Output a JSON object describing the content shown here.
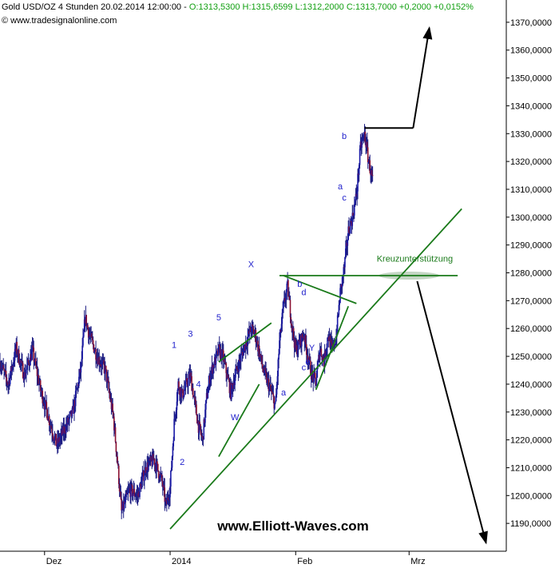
{
  "header": {
    "symbol": "Gold USD/OZ 4 Stunden",
    "datetime": "20.02.2014 12:00:00",
    "open": "O:1313,5300",
    "high": "H:1315,6599",
    "low": "L:1312,2000",
    "close": "C:1313,7000",
    "change": "+0,2000",
    "change_pct": "+0,0152%",
    "source": "© www.tradesignalonline.com"
  },
  "watermark": "www.Elliott-Waves.com",
  "colors": {
    "up_candle": "#1a1aa8",
    "down_candle": "#8a1030",
    "trend_lines": "#1a7a1a",
    "wave_labels": "#2222cc",
    "arrows": "#000000",
    "header_values": "#12a012"
  },
  "chart_data": {
    "type": "candlestick",
    "title": "Gold USD/OZ 4 Stunden",
    "y_axis": {
      "position": "right",
      "range": [
        1180,
        1378
      ],
      "ticks": [
        "1190,0000",
        "1200,0000",
        "1210,0000",
        "1220,0000",
        "1230,0000",
        "1240,0000",
        "1250,0000",
        "1260,0000",
        "1270,0000",
        "1280,0000",
        "1290,0000",
        "1300,0000",
        "1310,0000",
        "1320,0000",
        "1330,0000",
        "1340,0000",
        "1350,0000",
        "1360,0000",
        "1370,0000"
      ]
    },
    "x_axis": {
      "tick_labels": [
        "Dez",
        "2014",
        "Feb",
        "Mrz"
      ],
      "range": [
        "2013-11-20",
        "2014-03-25"
      ]
    },
    "grid": false,
    "price_path": [
      [
        "2013-11-20",
        1248
      ],
      [
        "2013-11-22",
        1240
      ],
      [
        "2013-11-24",
        1253
      ],
      [
        "2013-11-26",
        1243
      ],
      [
        "2013-11-28",
        1252
      ],
      [
        "2013-11-30",
        1238
      ],
      [
        "2013-12-02",
        1228
      ],
      [
        "2013-12-04",
        1218
      ],
      [
        "2013-12-06",
        1224
      ],
      [
        "2013-12-08",
        1230
      ],
      [
        "2013-12-10",
        1246
      ],
      [
        "2013-12-11",
        1264
      ],
      [
        "2013-12-12",
        1258
      ],
      [
        "2013-12-14",
        1250
      ],
      [
        "2013-12-16",
        1245
      ],
      [
        "2013-12-18",
        1228
      ],
      [
        "2013-12-19",
        1212
      ],
      [
        "2013-12-20",
        1194
      ],
      [
        "2013-12-22",
        1202
      ],
      [
        "2013-12-24",
        1200
      ],
      [
        "2013-12-26",
        1210
      ],
      [
        "2013-12-28",
        1213
      ],
      [
        "2013-12-30",
        1205
      ],
      [
        "2013-12-31",
        1196
      ],
      [
        "2014-01-01",
        1203
      ],
      [
        "2014-01-02",
        1226
      ],
      [
        "2014-01-03",
        1240
      ],
      [
        "2014-01-04",
        1236
      ],
      [
        "2014-01-05",
        1240
      ],
      [
        "2014-01-06",
        1243
      ],
      [
        "2014-01-08",
        1225
      ],
      [
        "2014-01-09",
        1220
      ],
      [
        "2014-01-10",
        1235
      ],
      [
        "2014-01-11",
        1244
      ],
      [
        "2014-01-13",
        1252
      ],
      [
        "2014-01-14",
        1250
      ],
      [
        "2014-01-16",
        1237
      ],
      [
        "2014-01-17",
        1243
      ],
      [
        "2014-01-19",
        1252
      ],
      [
        "2014-01-21",
        1260
      ],
      [
        "2014-01-22",
        1258
      ],
      [
        "2014-01-24",
        1245
      ],
      [
        "2014-01-26",
        1237
      ],
      [
        "2014-01-27",
        1232
      ],
      [
        "2014-01-28",
        1255
      ],
      [
        "2014-01-29",
        1268
      ],
      [
        "2014-01-30",
        1275
      ],
      [
        "2014-01-31",
        1262
      ],
      [
        "2014-02-01",
        1252
      ],
      [
        "2014-02-03",
        1258
      ],
      [
        "2014-02-04",
        1250
      ],
      [
        "2014-02-05",
        1243
      ],
      [
        "2014-02-06",
        1241
      ],
      [
        "2014-02-07",
        1253
      ],
      [
        "2014-02-08",
        1248
      ],
      [
        "2014-02-09",
        1258
      ],
      [
        "2014-02-10",
        1252
      ],
      [
        "2014-02-11",
        1257
      ],
      [
        "2014-02-12",
        1273
      ],
      [
        "2014-02-13",
        1282
      ],
      [
        "2014-02-14",
        1295
      ],
      [
        "2014-02-15",
        1300
      ],
      [
        "2014-02-16",
        1308
      ],
      [
        "2014-02-17",
        1325
      ],
      [
        "2014-02-18",
        1330
      ],
      [
        "2014-02-19",
        1320
      ],
      [
        "2014-02-20",
        1313
      ]
    ],
    "trend_lines": [
      {
        "from": [
          "2014-01-01",
          1188
        ],
        "to": [
          "2014-03-14",
          1303
        ]
      },
      {
        "from": [
          "2014-01-13",
          1248
        ],
        "to": [
          "2014-01-26",
          1262
        ]
      },
      {
        "from": [
          "2014-01-13",
          1214
        ],
        "to": [
          "2014-01-23",
          1240
        ]
      },
      {
        "from": [
          "2014-01-28",
          1279
        ],
        "to": [
          "2014-03-13",
          1279
        ]
      },
      {
        "from": [
          "2014-01-29",
          1279
        ],
        "to": [
          "2014-02-16",
          1269
        ]
      },
      {
        "from": [
          "2014-02-06",
          1238
        ],
        "to": [
          "2014-02-14",
          1268
        ]
      }
    ],
    "arrows": [
      {
        "from": [
          "2014-02-18",
          1332
        ],
        "to": [
          "2014-03-02",
          1332
        ]
      },
      {
        "from": [
          "2014-03-02",
          1332
        ],
        "to": [
          "2014-03-06",
          1368
        ]
      },
      {
        "from": [
          "2014-03-03",
          1277
        ],
        "to": [
          "2014-03-20",
          1183
        ]
      }
    ],
    "wave_labels": [
      {
        "text": "1",
        "x": "2014-01-02",
        "y": 1253
      },
      {
        "text": "2",
        "x": "2014-01-04",
        "y": 1211
      },
      {
        "text": "3",
        "x": "2014-01-06",
        "y": 1257
      },
      {
        "text": "4",
        "x": "2014-01-08",
        "y": 1239
      },
      {
        "text": "5",
        "x": "2014-01-13",
        "y": 1263
      },
      {
        "text": "W",
        "x": "2014-01-17",
        "y": 1227
      },
      {
        "text": "X",
        "x": "2014-01-21",
        "y": 1282
      },
      {
        "text": "a",
        "x": "2014-01-29",
        "y": 1236
      },
      {
        "text": "b",
        "x": "2014-02-02",
        "y": 1275
      },
      {
        "text": "c",
        "x": "2014-02-03",
        "y": 1245
      },
      {
        "text": "d",
        "x": "2014-02-03",
        "y": 1272
      },
      {
        "text": "e",
        "x": "2014-02-04",
        "y": 1247
      },
      {
        "text": "Y",
        "x": "2014-02-05",
        "y": 1252
      },
      {
        "text": "b",
        "x": "2014-02-13",
        "y": 1328
      },
      {
        "text": "a",
        "x": "2014-02-12",
        "y": 1310
      },
      {
        "text": "c",
        "x": "2014-02-13",
        "y": 1306
      }
    ],
    "annotations": [
      {
        "text": "Kreuzunterstützung",
        "x": "2014-02-21",
        "y": 1284
      }
    ]
  }
}
